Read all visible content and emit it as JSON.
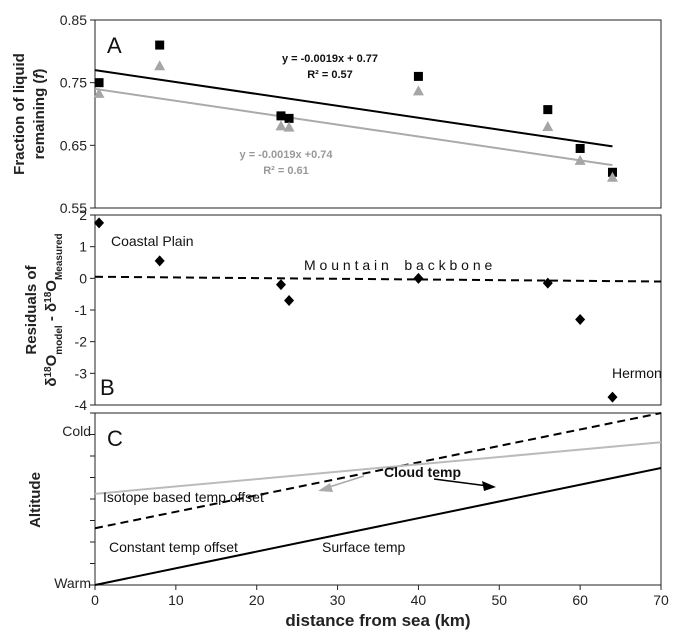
{
  "x_axis": {
    "label": "distance from sea (km)",
    "range": [
      0,
      70
    ],
    "ticks": [
      "0",
      "10",
      "20",
      "30",
      "40",
      "50",
      "60",
      "70"
    ]
  },
  "chart_data": [
    {
      "type": "scatter",
      "panel_label": "A",
      "ylabel_lines": [
        "Fraction of liquid",
        "remaining (",
        "f",
        ")"
      ],
      "ylim": [
        0.55,
        0.85
      ],
      "yticks": [
        "0.55",
        "0.65",
        "0.75",
        "0.85"
      ],
      "series": [
        {
          "marker": "square",
          "color": "#000000",
          "x": [
            0.5,
            8,
            23,
            24,
            40,
            56,
            60,
            64
          ],
          "y": [
            0.75,
            0.81,
            0.697,
            0.693,
            0.76,
            0.707,
            0.645,
            0.607
          ],
          "trendline": {
            "slope": -0.0019,
            "intercept": 0.77,
            "equation": "y = -0.0019x + 0.77",
            "r2": "R² = 0.57"
          }
        },
        {
          "marker": "triangle",
          "color": "#a6a6a6",
          "x": [
            0.5,
            8,
            23,
            24,
            40,
            56,
            60,
            64
          ],
          "y": [
            0.733,
            0.777,
            0.681,
            0.679,
            0.737,
            0.68,
            0.626,
            0.599
          ],
          "trendline": {
            "slope": -0.0019,
            "intercept": 0.74,
            "equation": "y = -0.0019x  +0.74",
            "r2": "R² = 0.61"
          }
        }
      ]
    },
    {
      "type": "scatter",
      "panel_label": "B",
      "ylabel_line1": "Residuals of",
      "ylabel_line2": [
        "δ",
        "18",
        "O",
        "model",
        " - δ",
        "18",
        "O",
        "Measured"
      ],
      "ylim": [
        -4,
        2
      ],
      "yticks": [
        "-4",
        "-3",
        "-2",
        "-1",
        "0",
        "1",
        "2"
      ],
      "series": [
        {
          "marker": "diamond",
          "color": "#000000",
          "x": [
            0.5,
            8,
            23,
            24,
            40,
            56,
            60,
            64
          ],
          "y": [
            1.75,
            0.55,
            -0.2,
            -0.7,
            0.0,
            -0.15,
            -1.3,
            -3.75
          ]
        }
      ],
      "zero_line": {
        "x": [
          0,
          70
        ],
        "y": [
          0.05,
          -0.1
        ]
      },
      "annotations": {
        "coastal": "Coastal Plain",
        "backbone": "M o u n t a i n    b a c k b o n e",
        "hermon": "Hermon"
      }
    },
    {
      "type": "line",
      "panel_label": "C",
      "ylabel": "Altitude",
      "ylim": [
        0,
        1
      ],
      "yticks": [
        "Warm",
        "Cold"
      ],
      "series": [
        {
          "color": "#000000",
          "dash": true,
          "x": [
            0,
            70
          ],
          "y": [
            0.33,
            1.0
          ]
        },
        {
          "color": "#bbbbbb",
          "dash": false,
          "x": [
            0,
            70
          ],
          "y": [
            0.53,
            0.83
          ]
        },
        {
          "color": "#000000",
          "dash": false,
          "x": [
            0,
            70
          ],
          "y": [
            0.0,
            0.68
          ]
        }
      ],
      "annotations": {
        "cloud": "Cloud temp",
        "isotope": "Isotope based temp offset",
        "constant": "Constant temp offset",
        "surface": "Surface temp"
      }
    }
  ]
}
